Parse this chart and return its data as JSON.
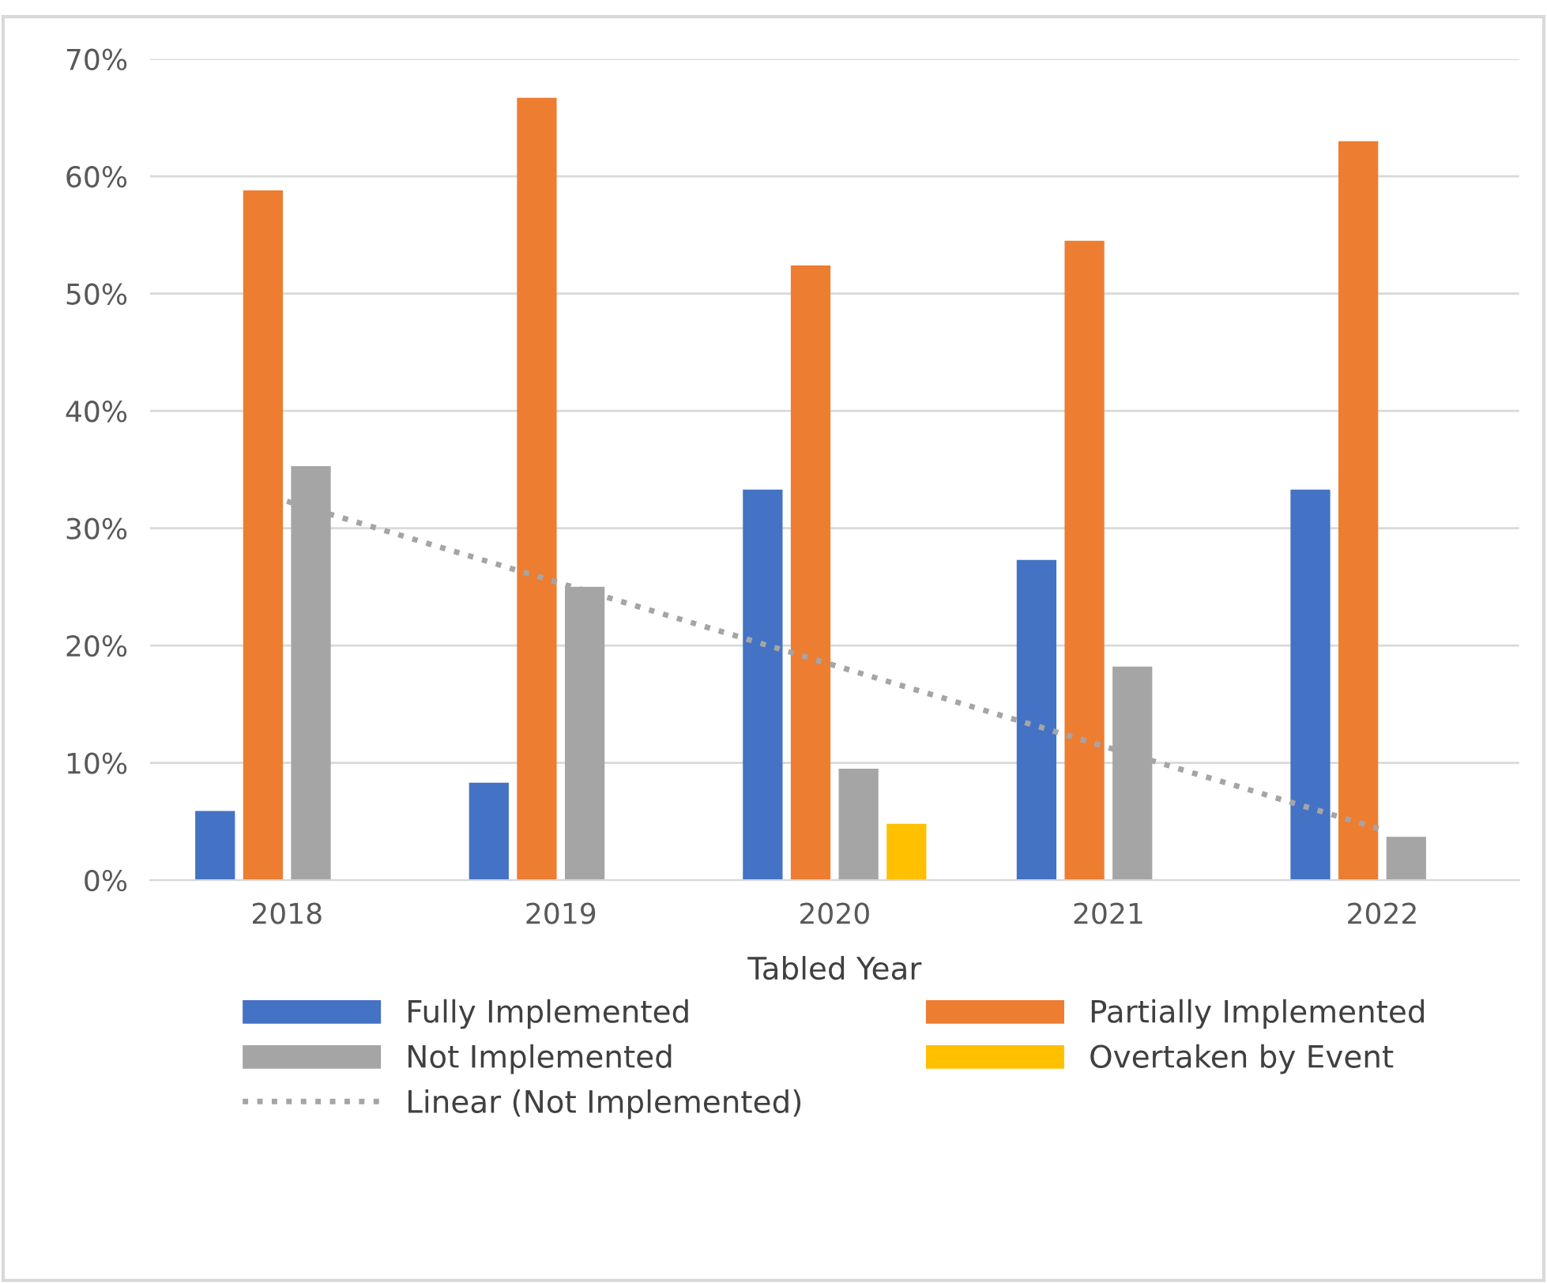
{
  "chart_data": {
    "type": "bar",
    "xlabel": "Tabled Year",
    "categories": [
      "2018",
      "2019",
      "2020",
      "2021",
      "2022"
    ],
    "series": [
      {
        "name": "Fully Implemented",
        "color": "#4472c4",
        "values": [
          5.9,
          8.3,
          33.3,
          27.3,
          33.3
        ]
      },
      {
        "name": "Partially Implemented",
        "color": "#ed7d31",
        "values": [
          58.8,
          66.7,
          52.4,
          54.5,
          63.0
        ]
      },
      {
        "name": "Not Implemented",
        "color": "#a5a5a5",
        "values": [
          35.3,
          25.0,
          9.5,
          18.2,
          3.7
        ]
      },
      {
        "name": "Overtaken by Event",
        "color": "#ffc000",
        "values": [
          null,
          null,
          4.8,
          null,
          null
        ]
      },
      {
        "name": "Linear (Not Implemented)",
        "type": "line",
        "color": "#a5a5a5",
        "line_style": "dotted",
        "values": [
          32.3,
          25.3,
          18.3,
          11.3,
          4.3
        ]
      }
    ],
    "ylim": [
      0,
      70
    ],
    "yticks": [
      {
        "value": 0,
        "label": "0%"
      },
      {
        "value": 10,
        "label": "10%"
      },
      {
        "value": 20,
        "label": "20%"
      },
      {
        "value": 30,
        "label": "30%"
      },
      {
        "value": 40,
        "label": "40%"
      },
      {
        "value": 50,
        "label": "50%"
      },
      {
        "value": 60,
        "label": "60%"
      },
      {
        "value": 70,
        "label": "70%"
      }
    ],
    "grid": "y",
    "legend": "bottom"
  }
}
